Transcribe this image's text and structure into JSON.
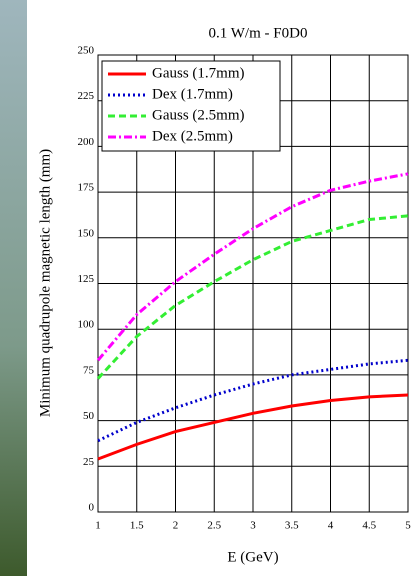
{
  "chart_data": {
    "type": "line",
    "title": "0.1 W/m - F0D0",
    "x_label": "E (GeV)",
    "y_label": "Minimum quadrupole magnetic length (mm)",
    "x": [
      1,
      1.5,
      2,
      2.5,
      3,
      3.5,
      4,
      4.5,
      5
    ],
    "series": [
      {
        "name": "Gauss (1.7mm)",
        "color": "#ff0000",
        "dash": "solid",
        "values": [
          29,
          37,
          44,
          49,
          54,
          58,
          61,
          63,
          64
        ]
      },
      {
        "name": "Dex (1.7mm)",
        "color": "#0000cc",
        "dash": "dotted",
        "values": [
          39,
          49,
          57,
          64,
          70,
          75,
          78,
          81,
          83
        ]
      },
      {
        "name": "Gauss (2.5mm)",
        "color": "#33ee33",
        "dash": "dashed",
        "values": [
          73,
          96,
          113,
          126,
          138,
          148,
          154,
          160,
          162
        ]
      },
      {
        "name": "Dex (2.5mm)",
        "color": "#ff00ff",
        "dash": "dashdot",
        "values": [
          83,
          108,
          126,
          141,
          155,
          167,
          176,
          181,
          185
        ]
      }
    ],
    "xlim": [
      1,
      5
    ],
    "xticks": [
      1,
      1.5,
      2,
      2.5,
      3,
      3.5,
      4,
      4.5,
      5
    ],
    "ylim": [
      0,
      250
    ],
    "yticks": [
      0,
      25,
      50,
      75,
      100,
      125,
      150,
      175,
      200,
      225,
      250
    ],
    "grid": true,
    "legend": "top-left"
  }
}
